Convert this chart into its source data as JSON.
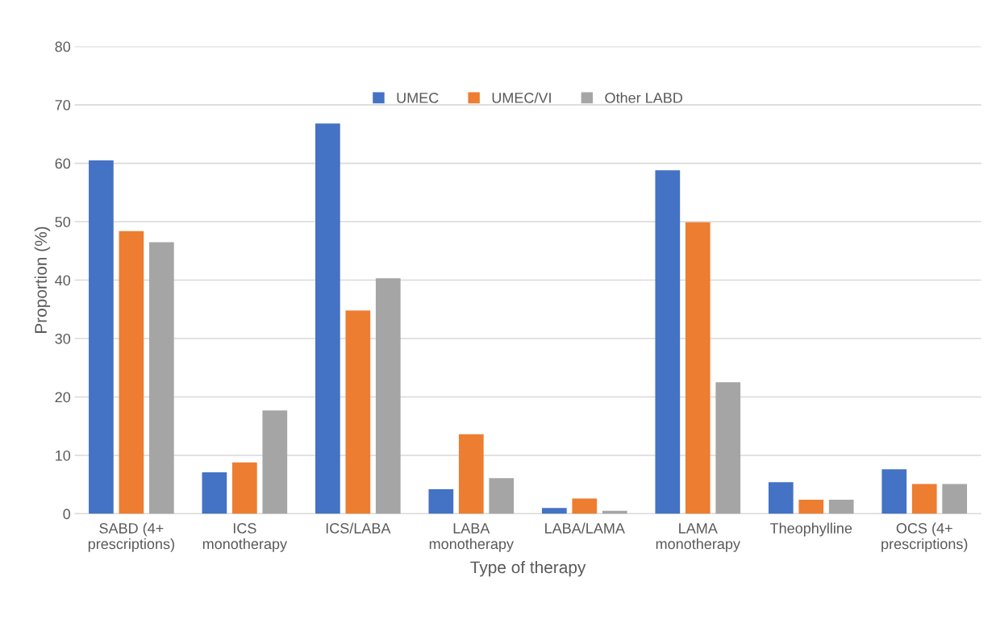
{
  "chart_data": {
    "type": "bar",
    "xlabel": "Type of therapy",
    "ylabel": "Proportion (%)",
    "categories": [
      "SABD (4+\nprescriptions)",
      "ICS\nmonotherapy",
      "ICS/LABA",
      "LABA\nmonotherapy",
      "LABA/LAMA",
      "LAMA\nmonotherapy",
      "Theophylline",
      "OCS (4+\nprescriptions)"
    ],
    "series": [
      {
        "name": "UMEC",
        "color": "#4472c4",
        "values": [
          60.5,
          7.1,
          66.8,
          4.2,
          1.0,
          58.8,
          5.4,
          7.6
        ]
      },
      {
        "name": "UMEC/VI",
        "color": "#ed7d31",
        "values": [
          48.4,
          8.8,
          34.8,
          13.6,
          2.6,
          49.9,
          2.4,
          5.1
        ]
      },
      {
        "name": "Other LABD",
        "color": "#a5a5a5",
        "values": [
          46.5,
          17.7,
          40.3,
          6.1,
          0.5,
          22.5,
          2.4,
          5.1
        ]
      }
    ],
    "ylim": [
      0,
      80
    ],
    "yticks": [
      0,
      10,
      20,
      30,
      40,
      50,
      60,
      70,
      80
    ],
    "grid": "y",
    "legend": "top"
  }
}
